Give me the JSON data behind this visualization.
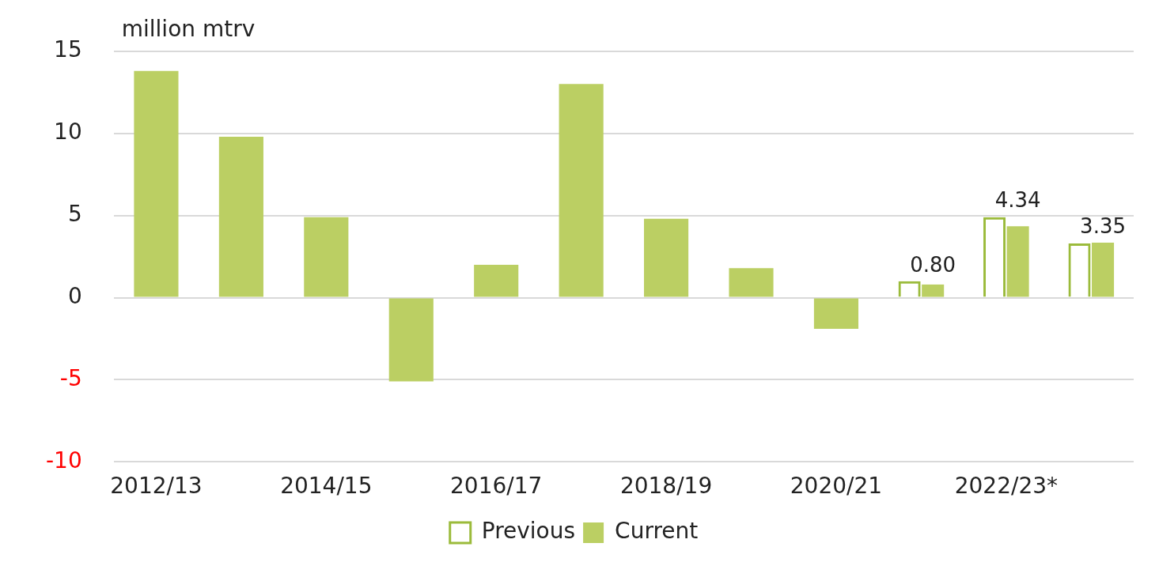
{
  "chart_data": {
    "type": "bar",
    "ylabel": "million mtrv",
    "categories": [
      "2012/13",
      null,
      "2014/15",
      null,
      "2016/17",
      null,
      "2018/19",
      null,
      "2020/21",
      null,
      "2022/23*",
      null
    ],
    "series": [
      {
        "name": "Previous",
        "color": "#9bbb3b",
        "values": [
          null,
          null,
          null,
          null,
          null,
          null,
          null,
          null,
          null,
          1.0,
          4.9,
          3.3
        ]
      },
      {
        "name": "Current",
        "color": "#bbcf63",
        "values": [
          13.8,
          9.8,
          4.9,
          -5.1,
          2.0,
          13.0,
          4.8,
          1.8,
          -1.9,
          0.8,
          4.34,
          3.35
        ],
        "value_labels": [
          null,
          null,
          null,
          null,
          null,
          null,
          null,
          null,
          null,
          "0.80",
          "4.34",
          "3.35"
        ]
      }
    ],
    "ylim": [
      -10,
      15
    ],
    "yticks": [
      -10,
      -5,
      0,
      5,
      10,
      15
    ],
    "grid": "y",
    "legend": "bottom"
  }
}
